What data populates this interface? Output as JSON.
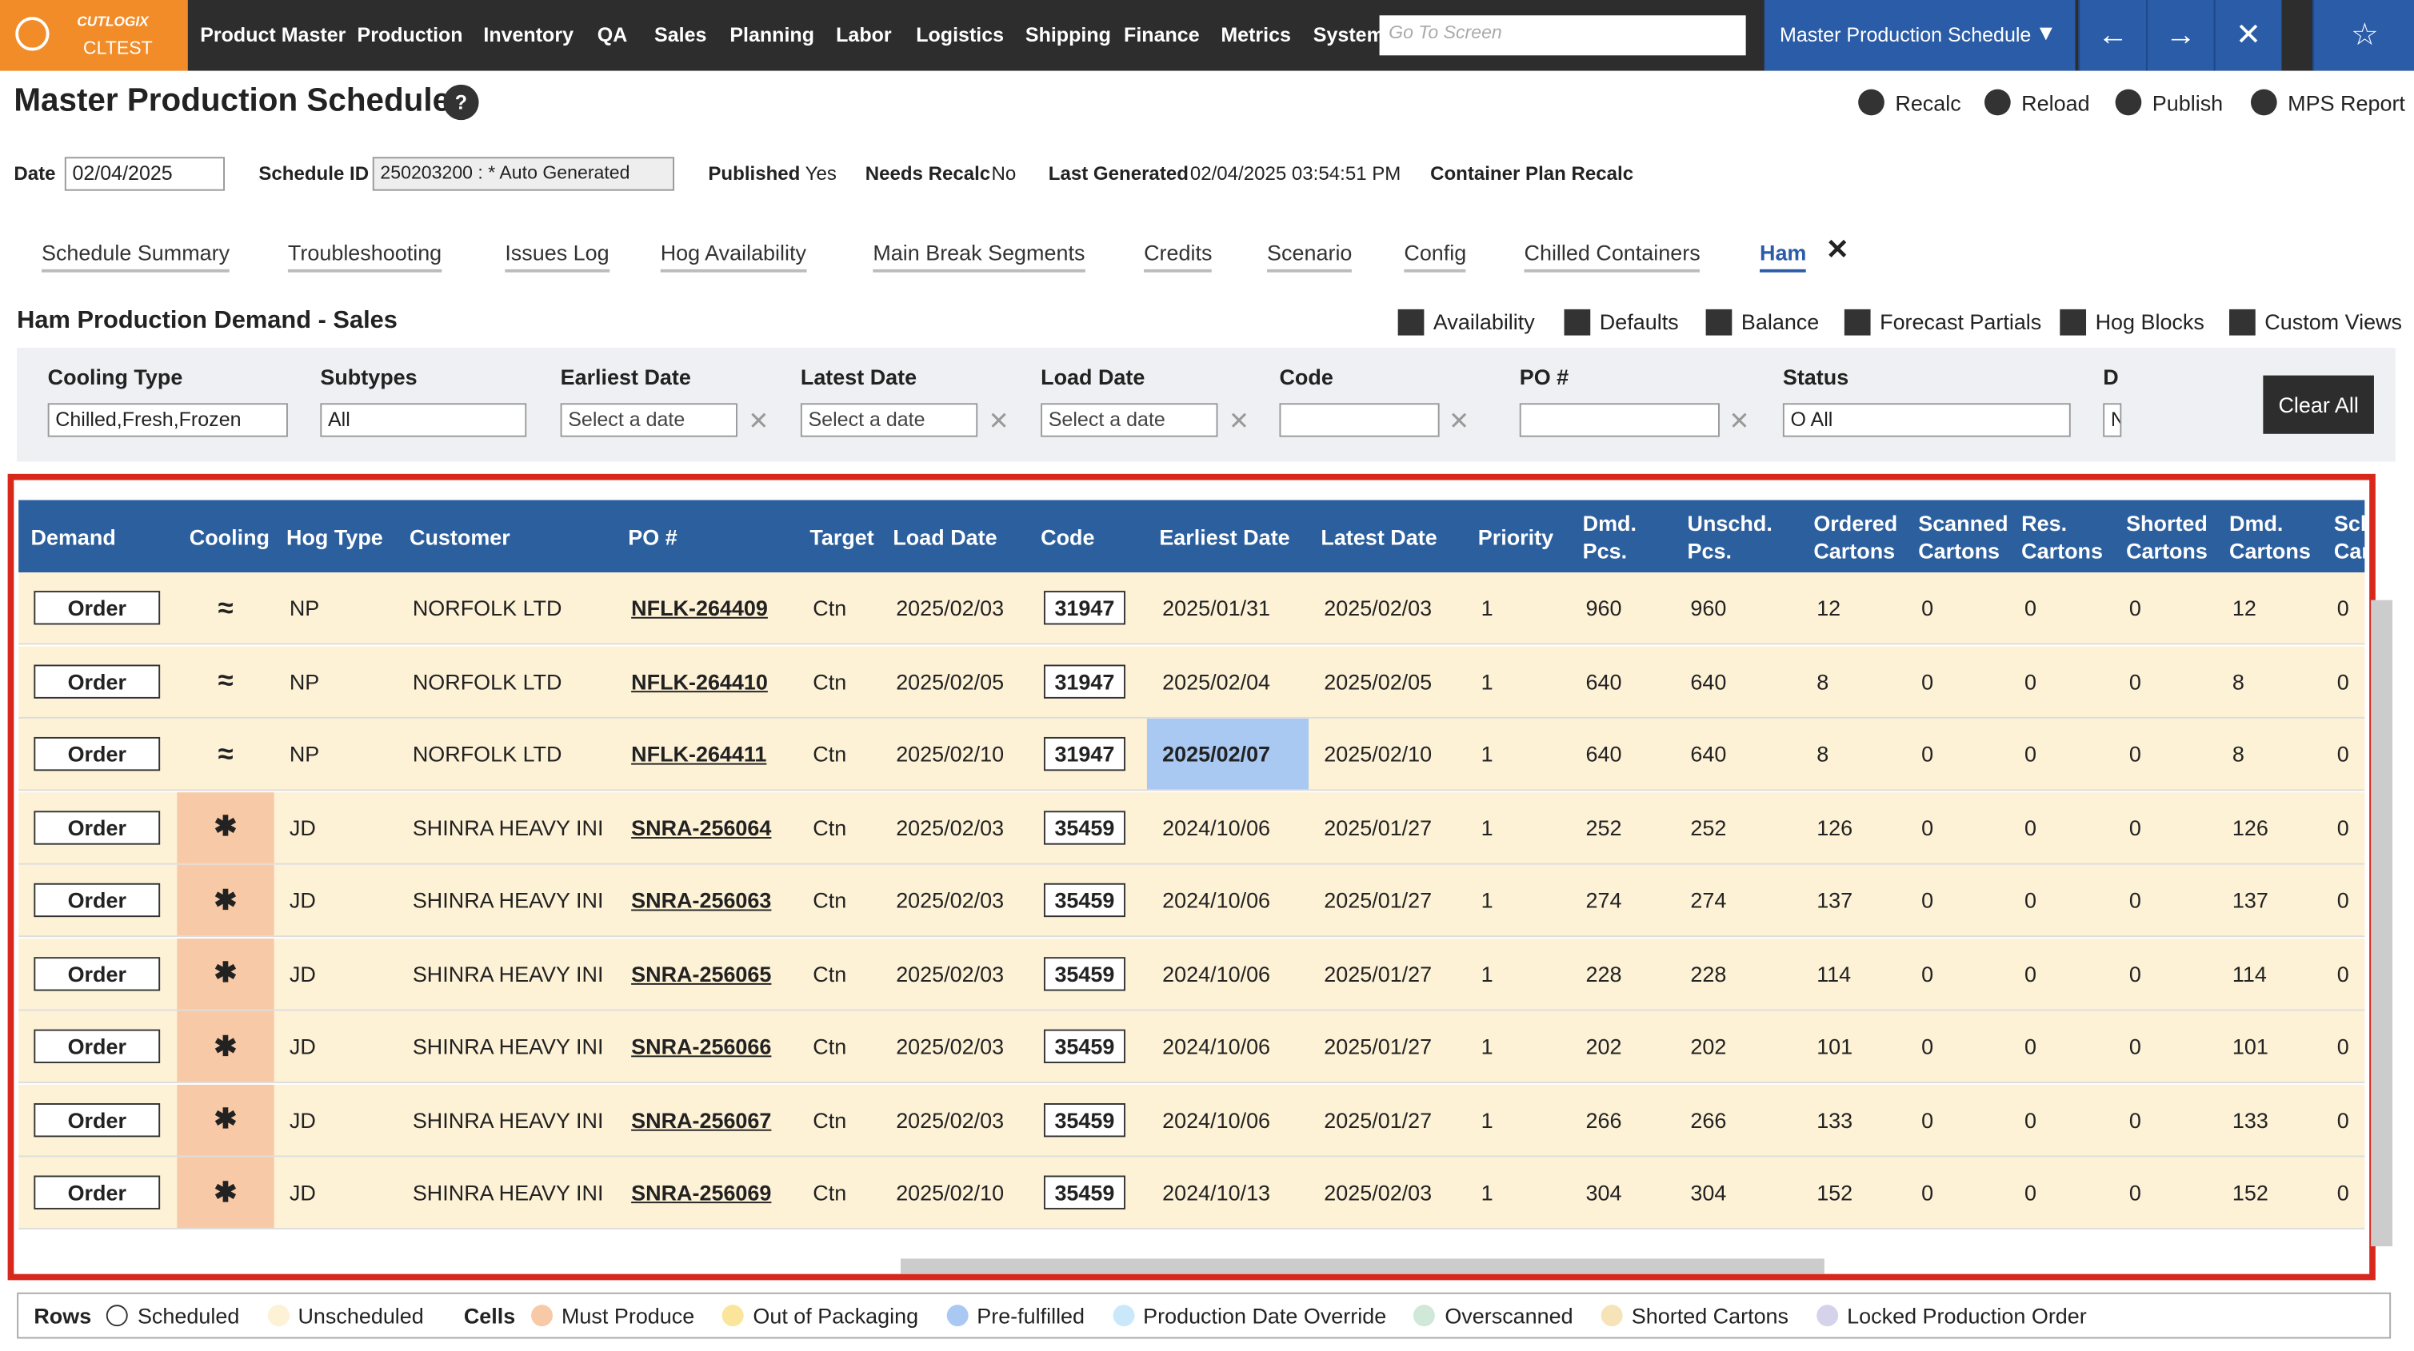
{
  "nav": {
    "brand": "CUTLOGIX",
    "env": "CLTEST",
    "menu": [
      "Product Master",
      "Production",
      "Inventory",
      "QA",
      "Sales",
      "Planning",
      "Labor",
      "Logistics",
      "Shipping",
      "Finance",
      "Metrics",
      "System"
    ],
    "search_placeholder": "Go To Screen",
    "screen": "Master Production Schedule"
  },
  "header": {
    "title": "Master Production Schedule",
    "actions": [
      "Recalc",
      "Reload",
      "Publish",
      "MPS Report"
    ]
  },
  "info": {
    "date_label": "Date",
    "date": "02/04/2025",
    "schedule_id_label": "Schedule ID",
    "schedule_id": "250203200 : * Auto Generated",
    "published_label": "Published",
    "published": "Yes",
    "needs_recalc_label": "Needs Recalc",
    "needs_recalc": "No",
    "last_generated_label": "Last Generated",
    "last_generated": "02/04/2025 03:54:51 PM",
    "container_plan": "Container Plan Recalc"
  },
  "tabs": [
    "Schedule Summary",
    "Troubleshooting",
    "Issues Log",
    "Hog Availability",
    "Main Break Segments",
    "Credits",
    "Scenario",
    "Config",
    "Chilled Containers",
    "Ham"
  ],
  "section": {
    "title": "Ham Production Demand - Sales",
    "tools": [
      "Availability",
      "Defaults",
      "Balance",
      "Forecast Partials",
      "Hog Blocks",
      "Custom Views"
    ]
  },
  "filters": {
    "date_placeholder": "Select a date",
    "clear": "Clear All",
    "fields": [
      {
        "label": "Cooling Type",
        "value": "Chilled,Fresh,Frozen"
      },
      {
        "label": "Subtypes",
        "value": "All"
      },
      {
        "label": "Earliest Date"
      },
      {
        "label": "Latest Date"
      },
      {
        "label": "Load Date"
      },
      {
        "label": "Code"
      },
      {
        "label": "PO #"
      },
      {
        "label": "Status",
        "value": "O All"
      },
      {
        "label": "D",
        "value": "N"
      }
    ]
  },
  "table": {
    "columns": [
      "Demand",
      "Cooling",
      "Hog Type",
      "Customer",
      "PO #",
      "Target",
      "Load Date",
      "Code",
      "Earliest Date",
      "Latest Date",
      "Priority",
      "Dmd. Pcs.",
      "Unschd. Pcs.",
      "Ordered Cartons",
      "Scanned Cartons",
      "Res. Cartons",
      "Shorted Cartons",
      "Dmd. Cartons",
      "Sch Car"
    ],
    "rows": [
      [
        "Order",
        "≈",
        "NP",
        "NORFOLK LTD",
        "NFLK-264409",
        "Ctn",
        "2025/02/03",
        "31947",
        "2025/01/31",
        "2025/02/03",
        1,
        960,
        960,
        12,
        0,
        0,
        0,
        12,
        0
      ],
      [
        "Order",
        "≈",
        "NP",
        "NORFOLK LTD",
        "NFLK-264410",
        "Ctn",
        "2025/02/05",
        "31947",
        "2025/02/04",
        "2025/02/05",
        1,
        640,
        640,
        8,
        0,
        0,
        0,
        8,
        0
      ],
      [
        "Order",
        "≈",
        "NP",
        "NORFOLK LTD",
        "NFLK-264411",
        "Ctn",
        "2025/02/10",
        "31947",
        "2025/02/07",
        "2025/02/10",
        1,
        640,
        640,
        8,
        0,
        0,
        0,
        8,
        0
      ],
      [
        "Order",
        "✱",
        "JD",
        "SHINRA HEAVY INI",
        "SNRA-256064",
        "Ctn",
        "2025/02/03",
        "35459",
        "2024/10/06",
        "2025/01/27",
        1,
        252,
        252,
        126,
        0,
        0,
        0,
        126,
        0
      ],
      [
        "Order",
        "✱",
        "JD",
        "SHINRA HEAVY INI",
        "SNRA-256063",
        "Ctn",
        "2025/02/03",
        "35459",
        "2024/10/06",
        "2025/01/27",
        1,
        274,
        274,
        137,
        0,
        0,
        0,
        137,
        0
      ],
      [
        "Order",
        "✱",
        "JD",
        "SHINRA HEAVY INI",
        "SNRA-256065",
        "Ctn",
        "2025/02/03",
        "35459",
        "2024/10/06",
        "2025/01/27",
        1,
        228,
        228,
        114,
        0,
        0,
        0,
        114,
        0
      ],
      [
        "Order",
        "✱",
        "JD",
        "SHINRA HEAVY INI",
        "SNRA-256066",
        "Ctn",
        "2025/02/03",
        "35459",
        "2024/10/06",
        "2025/01/27",
        1,
        202,
        202,
        101,
        0,
        0,
        0,
        101,
        0
      ],
      [
        "Order",
        "✱",
        "JD",
        "SHINRA HEAVY INI",
        "SNRA-256067",
        "Ctn",
        "2025/02/03",
        "35459",
        "2024/10/06",
        "2025/01/27",
        1,
        266,
        266,
        133,
        0,
        0,
        0,
        133,
        0
      ],
      [
        "Order",
        "✱",
        "JD",
        "SHINRA HEAVY INI",
        "SNRA-256069",
        "Ctn",
        "2025/02/10",
        "35459",
        "2024/10/13",
        "2025/02/03",
        1,
        304,
        304,
        152,
        0,
        0,
        0,
        152,
        0
      ]
    ]
  },
  "legend": {
    "rows_label": "Rows",
    "rows": [
      {
        "name": "Scheduled",
        "color": "#ffffff"
      },
      {
        "name": "Unscheduled",
        "color": "#fdf1d6"
      }
    ],
    "cells_label": "Cells",
    "cells": [
      {
        "name": "Must Produce",
        "color": "#f7c9a6"
      },
      {
        "name": "Out of Packaging",
        "color": "#fbe59a"
      },
      {
        "name": "Pre-fulfilled",
        "color": "#a9c9f2"
      },
      {
        "name": "Production Date Override",
        "color": "#c9e9fa"
      },
      {
        "name": "Overscanned",
        "color": "#cfe8d8"
      },
      {
        "name": "Shorted Cartons",
        "color": "#f6e3b8"
      },
      {
        "name": "Locked Production Order",
        "color": "#d5d3ea"
      }
    ]
  }
}
